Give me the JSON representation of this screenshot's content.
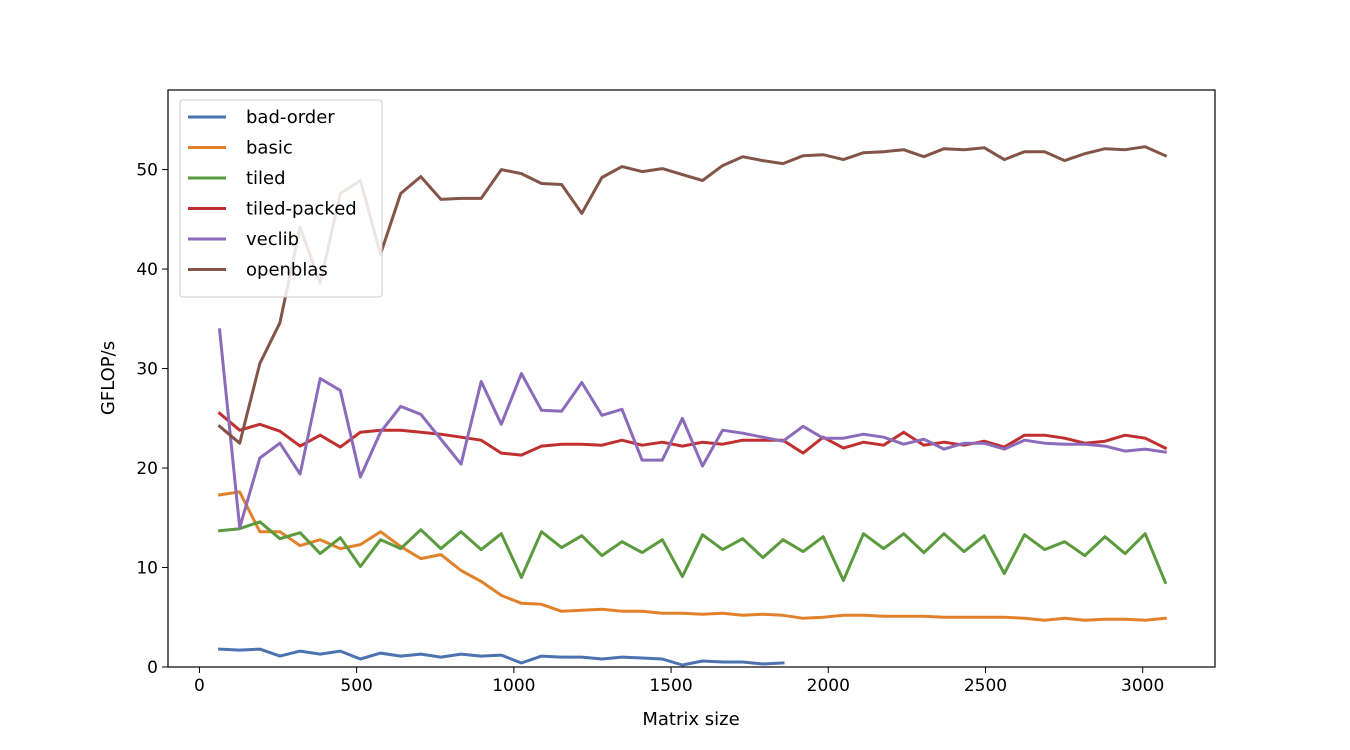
{
  "chart_data": {
    "type": "line",
    "title": "",
    "xlabel": "Matrix size",
    "ylabel": "GFLOP/s",
    "xlim": [
      -100,
      3230
    ],
    "ylim": [
      0,
      58
    ],
    "xticks": [
      0,
      500,
      1000,
      1500,
      2000,
      2500,
      3000
    ],
    "yticks": [
      0,
      10,
      20,
      30,
      40,
      50
    ],
    "grid": false,
    "legend_position": "upper-left",
    "series": [
      {
        "name": "bad-order",
        "color": "#4c72b0",
        "x": [
          64,
          128,
          192,
          256,
          320,
          384,
          448,
          512,
          576,
          640,
          704,
          768,
          832,
          896,
          960,
          1024,
          1088,
          1152,
          1216,
          1280,
          1344,
          1408,
          1472,
          1536,
          1600,
          1664,
          1728,
          1792,
          1856
        ],
        "y": [
          1.8,
          1.7,
          1.8,
          1.1,
          1.6,
          1.3,
          1.6,
          0.8,
          1.4,
          1.1,
          1.3,
          1.0,
          1.3,
          1.1,
          1.2,
          0.4,
          1.1,
          1.0,
          1.0,
          0.8,
          1.0,
          0.9,
          0.8,
          0.2,
          0.6,
          0.5,
          0.5,
          0.3,
          0.4
        ]
      },
      {
        "name": "basic",
        "color": "#e1812c",
        "x": [
          64,
          128,
          192,
          256,
          320,
          384,
          448,
          512,
          576,
          640,
          704,
          768,
          832,
          896,
          960,
          1024,
          1088,
          1152,
          1216,
          1280,
          1344,
          1408,
          1472,
          1536,
          1600,
          1664,
          1728,
          1792,
          1856,
          1920,
          1984,
          2048,
          2112,
          2176,
          2240,
          2304,
          2368,
          2432,
          2496,
          2560,
          2624,
          2688,
          2752,
          2816,
          2880,
          2944,
          3008,
          3072
        ],
        "y": [
          17.3,
          17.6,
          13.6,
          13.6,
          12.2,
          12.8,
          11.9,
          12.3,
          13.6,
          12.1,
          10.9,
          11.3,
          9.7,
          8.6,
          7.2,
          6.4,
          6.3,
          5.6,
          5.7,
          5.8,
          5.6,
          5.6,
          5.4,
          5.4,
          5.3,
          5.4,
          5.2,
          5.3,
          5.2,
          4.9,
          5.0,
          5.2,
          5.2,
          5.1,
          5.1,
          5.1,
          5.0,
          5.0,
          5.0,
          5.0,
          4.9,
          4.7,
          4.9,
          4.7,
          4.8,
          4.8,
          4.7,
          4.9
        ]
      },
      {
        "name": "tiled",
        "color": "#5b9b3e",
        "x": [
          64,
          128,
          192,
          256,
          320,
          384,
          448,
          512,
          576,
          640,
          704,
          768,
          832,
          896,
          960,
          1024,
          1088,
          1152,
          1216,
          1280,
          1344,
          1408,
          1472,
          1536,
          1600,
          1664,
          1728,
          1792,
          1856,
          1920,
          1984,
          2048,
          2112,
          2176,
          2240,
          2304,
          2368,
          2432,
          2496,
          2560,
          2624,
          2688,
          2752,
          2816,
          2880,
          2944,
          3008,
          3072
        ],
        "y": [
          13.7,
          13.9,
          14.6,
          12.9,
          13.5,
          11.4,
          13.0,
          10.1,
          12.8,
          11.9,
          13.8,
          11.9,
          13.6,
          11.8,
          13.4,
          9.0,
          13.6,
          12.0,
          13.2,
          11.2,
          12.6,
          11.5,
          12.8,
          9.1,
          13.3,
          11.8,
          12.9,
          11.0,
          12.8,
          11.6,
          13.1,
          8.7,
          13.4,
          11.9,
          13.4,
          11.5,
          13.4,
          11.6,
          13.2,
          9.4,
          13.3,
          11.8,
          12.6,
          11.2,
          13.1,
          11.4,
          13.4,
          8.5
        ]
      },
      {
        "name": "tiled-packed",
        "color": "#c03030",
        "x": [
          64,
          128,
          192,
          256,
          320,
          384,
          448,
          512,
          576,
          640,
          704,
          768,
          832,
          896,
          960,
          1024,
          1088,
          1152,
          1216,
          1280,
          1344,
          1408,
          1472,
          1536,
          1600,
          1664,
          1728,
          1792,
          1856,
          1920,
          1984,
          2048,
          2112,
          2176,
          2240,
          2304,
          2368,
          2432,
          2496,
          2560,
          2624,
          2688,
          2752,
          2816,
          2880,
          2944,
          3008,
          3072
        ],
        "y": [
          25.5,
          23.8,
          24.4,
          23.7,
          22.2,
          23.3,
          22.1,
          23.6,
          23.8,
          23.8,
          23.6,
          23.4,
          23.1,
          22.8,
          21.5,
          21.3,
          22.2,
          22.4,
          22.4,
          22.3,
          22.8,
          22.3,
          22.6,
          22.2,
          22.6,
          22.4,
          22.8,
          22.8,
          22.8,
          21.5,
          23.1,
          22.0,
          22.6,
          22.3,
          23.6,
          22.3,
          22.6,
          22.3,
          22.7,
          22.1,
          23.3,
          23.3,
          23.0,
          22.5,
          22.7,
          23.3,
          23.0,
          22.0
        ]
      },
      {
        "name": "veclib",
        "color": "#8c6bbb",
        "x": [
          64,
          128,
          192,
          256,
          320,
          384,
          448,
          512,
          576,
          640,
          704,
          768,
          832,
          896,
          960,
          1024,
          1088,
          1152,
          1216,
          1280,
          1344,
          1408,
          1472,
          1536,
          1600,
          1664,
          1728,
          1792,
          1856,
          1920,
          1984,
          2048,
          2112,
          2176,
          2240,
          2304,
          2368,
          2432,
          2496,
          2560,
          2624,
          2688,
          2752,
          2816,
          2880,
          2944,
          3008,
          3072
        ],
        "y": [
          33.9,
          14.0,
          21.0,
          22.5,
          19.4,
          29.0,
          27.8,
          19.1,
          23.6,
          26.2,
          25.4,
          22.9,
          20.4,
          28.7,
          24.4,
          29.5,
          25.8,
          25.7,
          28.6,
          25.3,
          25.9,
          20.8,
          20.8,
          25.0,
          20.2,
          23.8,
          23.5,
          23.1,
          22.7,
          24.2,
          23.0,
          23.0,
          23.4,
          23.1,
          22.4,
          22.9,
          21.9,
          22.5,
          22.5,
          21.9,
          22.8,
          22.5,
          22.4,
          22.4,
          22.2,
          21.7,
          21.9,
          21.6
        ]
      },
      {
        "name": "openblas",
        "color": "#825548",
        "x": [
          64,
          128,
          192,
          256,
          320,
          384,
          448,
          512,
          576,
          640,
          704,
          768,
          832,
          896,
          960,
          1024,
          1088,
          1152,
          1216,
          1280,
          1344,
          1408,
          1472,
          1536,
          1600,
          1664,
          1728,
          1792,
          1856,
          1920,
          1984,
          2048,
          2112,
          2176,
          2240,
          2304,
          2368,
          2432,
          2496,
          2560,
          2624,
          2688,
          2752,
          2816,
          2880,
          2944,
          3008,
          3072
        ],
        "y": [
          24.2,
          22.5,
          30.5,
          34.6,
          44.2,
          38.6,
          47.6,
          48.9,
          41.5,
          47.6,
          49.3,
          47.0,
          47.1,
          47.1,
          50.0,
          49.6,
          48.6,
          48.5,
          45.6,
          49.2,
          50.3,
          49.8,
          50.1,
          49.5,
          48.9,
          50.4,
          51.3,
          50.9,
          50.6,
          51.4,
          51.5,
          51.0,
          51.7,
          51.8,
          52.0,
          51.3,
          52.1,
          52.0,
          52.2,
          51.0,
          51.8,
          51.8,
          50.9,
          51.6,
          52.1,
          52.0,
          52.3,
          51.4
        ]
      }
    ]
  }
}
